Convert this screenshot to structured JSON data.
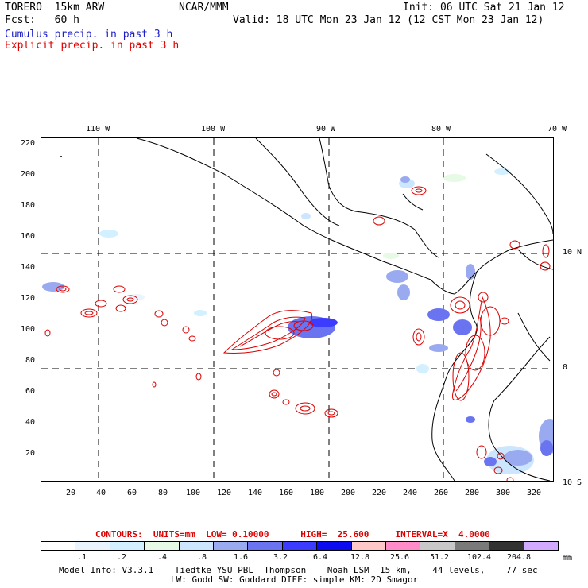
{
  "header": {
    "model": "TORERO  15km ARW",
    "org": "NCAR/MMM",
    "init": "Init: 06 UTC Sat 21 Jan 12",
    "fcst": "Fcst:   60 h",
    "valid": "Valid: 18 UTC Mon 23 Jan 12 (12 CST Mon 23 Jan 12)",
    "line_cumulus": "Cumulus precip. in past 3 h",
    "line_explicit": "Explicit precip. in past 3 h"
  },
  "axes": {
    "top_lon": [
      "110 W",
      "100 W",
      "90 W",
      "80 W",
      "70 W"
    ],
    "right_lat": [
      "10 N",
      "0",
      "10 S"
    ],
    "left_ticks": [
      "220",
      "200",
      "180",
      "160",
      "140",
      "120",
      "100",
      "80",
      "60",
      "40",
      "20"
    ],
    "bottom_ticks": [
      "20",
      "40",
      "60",
      "80",
      "100",
      "120",
      "140",
      "160",
      "180",
      "200",
      "220",
      "240",
      "260",
      "280",
      "300",
      "320"
    ]
  },
  "contours_line": {
    "label": "CONTOURS:  UNITS=mm  LOW= 0.10000      HIGH=  25.600     INTERVAL=X  4.0000"
  },
  "legend": {
    "colors": [
      "#ffffff",
      "#eaf4ff",
      "#d2f0ff",
      "#e6fae6",
      "#cce6ff",
      "#9aaaf0",
      "#6a74f0",
      "#3c3cff",
      "#0c0cf0",
      "#ffc8c8",
      "#ff8cc8",
      "#c8c8c8",
      "#7a7a7a",
      "#323232",
      "#d2aaff"
    ],
    "labels": [
      ".1",
      ".2",
      ".4",
      ".8",
      "1.6",
      "3.2",
      "6.4",
      "12.8",
      "25.6",
      "51.2",
      "102.4",
      "204.8"
    ],
    "unit": "mm"
  },
  "footer": {
    "line1": "Model Info: V3.3.1    Tiedtke YSU PBL  Thompson    Noah LSM  15 km,    44 levels,    77 sec",
    "line2": "LW: Godd SW: Goddard DIFF: simple KM: 2D Smagor"
  },
  "colors": {
    "cumulus": "#1c1cc8",
    "explicit": "#dd0000"
  }
}
